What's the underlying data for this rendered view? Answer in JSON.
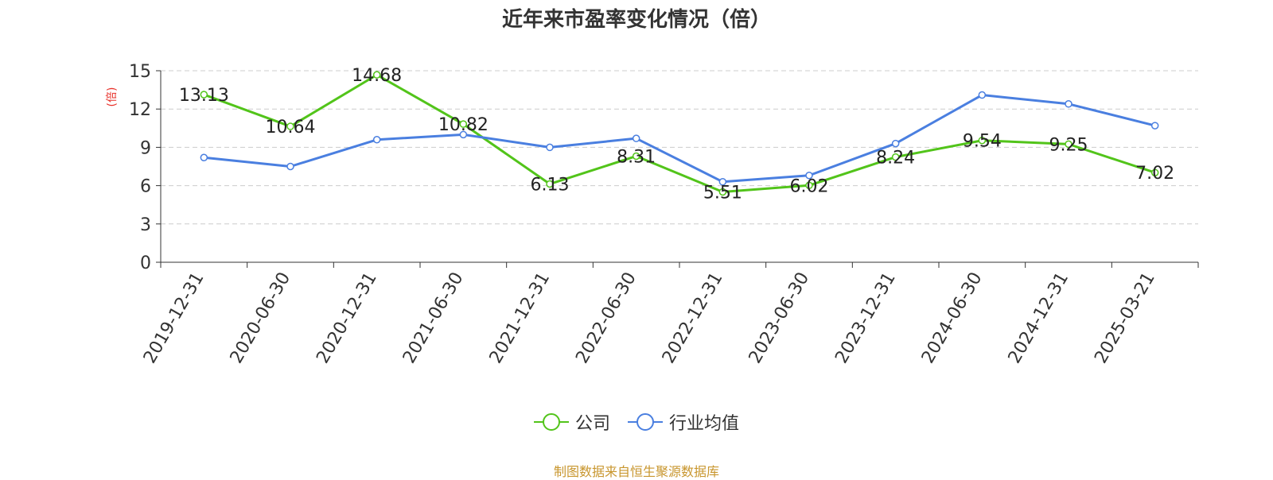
{
  "chart_data": {
    "type": "line",
    "title": "近年来市盈率变化情况（倍）",
    "ylabel": "(倍)",
    "xlabel": "",
    "ylim": [
      0,
      15
    ],
    "yticks": [
      0,
      3,
      6,
      9,
      12,
      15
    ],
    "grid": true,
    "legend_position": "bottom",
    "categories": [
      "2019-12-31",
      "2020-06-30",
      "2020-12-31",
      "2021-06-30",
      "2021-12-31",
      "2022-06-30",
      "2022-12-31",
      "2023-06-30",
      "2023-12-31",
      "2024-06-30",
      "2024-12-31",
      "2025-03-21"
    ],
    "series": [
      {
        "name": "公司",
        "color": "#52c41a",
        "values": [
          13.13,
          10.64,
          14.68,
          10.82,
          6.13,
          8.31,
          5.51,
          6.02,
          8.24,
          9.54,
          9.25,
          7.02
        ],
        "labels": [
          "13.13",
          "10.64",
          "14.68",
          "10.82",
          "6.13",
          "8.31",
          "5.51",
          "6.02",
          "8.24",
          "9.54",
          "9.25",
          "7.02"
        ]
      },
      {
        "name": "行业均值",
        "color": "#4a7fe0",
        "values": [
          8.2,
          7.5,
          9.6,
          10.0,
          9.0,
          9.7,
          6.3,
          6.8,
          9.3,
          13.1,
          12.4,
          10.7
        ]
      }
    ]
  },
  "source_note": "制图数据来自恒生聚源数据库"
}
